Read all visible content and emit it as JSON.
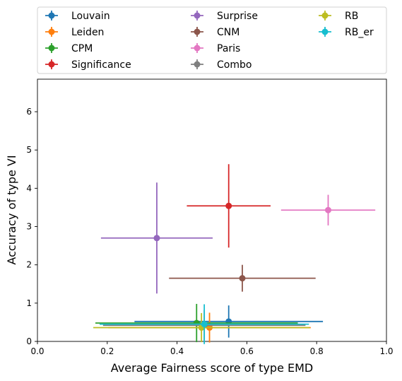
{
  "chart_data": {
    "type": "scatter",
    "xlabel": "Average Fairness score of type EMD",
    "ylabel": "Accuracy of type VI",
    "xlim": [
      0,
      1
    ],
    "ylim": [
      0,
      6.85
    ],
    "xticks": [
      0.0,
      0.2,
      0.4,
      0.6,
      0.8,
      1.0
    ],
    "xtick_labels": [
      "0.0",
      "0.2",
      "0.4",
      "0.6",
      "0.8",
      "1.0"
    ],
    "yticks": [
      0,
      1,
      2,
      3,
      4,
      5,
      6
    ],
    "ytick_labels": [
      "0",
      "1",
      "2",
      "3",
      "4",
      "5",
      "6"
    ],
    "grid": false,
    "legend_placement": "top, above plot, 3 columns",
    "error_bars": true,
    "series": [
      {
        "name": "Louvain",
        "color": "#1f77b4",
        "x": 0.548,
        "y": 0.52,
        "xerr": 0.27,
        "yerr": 0.42
      },
      {
        "name": "Leiden",
        "color": "#ff7f0e",
        "x": 0.493,
        "y": 0.36,
        "xerr": 0.29,
        "yerr": 0.39
      },
      {
        "name": "CPM",
        "color": "#2ca02c",
        "x": 0.456,
        "y": 0.48,
        "xerr": 0.29,
        "yerr": 0.5
      },
      {
        "name": "Significance",
        "color": "#d62728",
        "x": 0.548,
        "y": 3.54,
        "xerr": 0.12,
        "yerr": 1.09
      },
      {
        "name": "Surprise",
        "color": "#9467bd",
        "x": 0.342,
        "y": 2.7,
        "xerr": 0.16,
        "yerr": 1.45
      },
      {
        "name": "CNM",
        "color": "#8c564b",
        "x": 0.587,
        "y": 1.65,
        "xerr": 0.21,
        "yerr": 0.35
      },
      {
        "name": "Paris",
        "color": "#e377c2",
        "x": 0.833,
        "y": 3.43,
        "xerr": 0.135,
        "yerr": 0.4
      },
      {
        "name": "Combo",
        "color": "#7f7f7f",
        "x": 0.478,
        "y": 0.42,
        "xerr": 0.29,
        "yerr": 0.4
      },
      {
        "name": "RB",
        "color": "#bcbd22",
        "x": 0.47,
        "y": 0.36,
        "xerr": 0.31,
        "yerr": 0.38
      },
      {
        "name": "RB_er",
        "color": "#17becf",
        "x": 0.478,
        "y": 0.45,
        "xerr": 0.3,
        "yerr": 0.52
      }
    ]
  }
}
